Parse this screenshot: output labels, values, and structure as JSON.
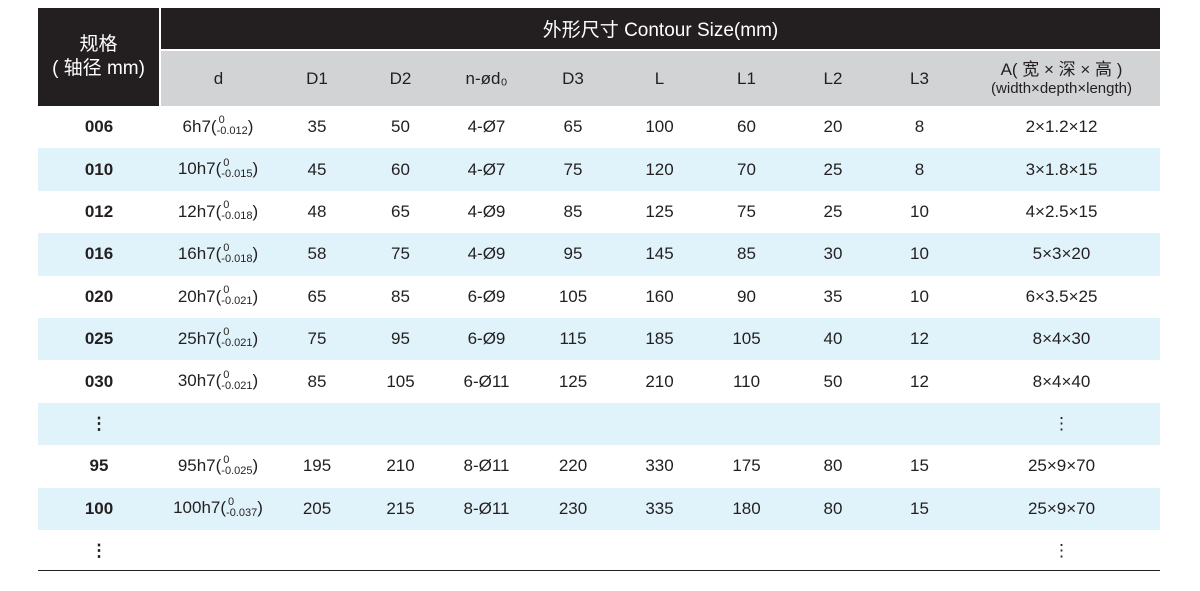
{
  "header": {
    "spec_line1": "规格",
    "spec_line2": "( 轴径 mm)",
    "title": "外形尺寸 Contour Size(mm)",
    "columns": [
      "d",
      "D1",
      "D2",
      "n-ød₀",
      "D3",
      "L",
      "L1",
      "L2",
      "L3"
    ],
    "a_line1": "A( 宽 × 深 × 高 )",
    "a_line2": "(width×depth×length)"
  },
  "rows": [
    {
      "spec": "006",
      "d": "6h7(",
      "tol_up": "0",
      "tol_low": "-0.012",
      "D1": "35",
      "D2": "50",
      "n": "4-Ø7",
      "D3": "65",
      "L": "100",
      "L1": "60",
      "L2": "20",
      "L3": "8",
      "A": "2×1.2×12"
    },
    {
      "spec": "010",
      "d": "10h7(",
      "tol_up": "0",
      "tol_low": "-0.015",
      "D1": "45",
      "D2": "60",
      "n": "4-Ø7",
      "D3": "75",
      "L": "120",
      "L1": "70",
      "L2": "25",
      "L3": "8",
      "A": "3×1.8×15"
    },
    {
      "spec": "012",
      "d": "12h7(",
      "tol_up": "0",
      "tol_low": "-0.018",
      "D1": "48",
      "D2": "65",
      "n": "4-Ø9",
      "D3": "85",
      "L": "125",
      "L1": "75",
      "L2": "25",
      "L3": "10",
      "A": "4×2.5×15"
    },
    {
      "spec": "016",
      "d": "16h7(",
      "tol_up": "0",
      "tol_low": "-0.018",
      "D1": "58",
      "D2": "75",
      "n": "4-Ø9",
      "D3": "95",
      "L": "145",
      "L1": "85",
      "L2": "30",
      "L3": "10",
      "A": "5×3×20"
    },
    {
      "spec": "020",
      "d": "20h7(",
      "tol_up": "0",
      "tol_low": "-0.021",
      "D1": "65",
      "D2": "85",
      "n": "6-Ø9",
      "D3": "105",
      "L": "160",
      "L1": "90",
      "L2": "35",
      "L3": "10",
      "A": "6×3.5×25"
    },
    {
      "spec": "025",
      "d": "25h7(",
      "tol_up": "0",
      "tol_low": "-0.021",
      "D1": "75",
      "D2": "95",
      "n": "6-Ø9",
      "D3": "115",
      "L": "185",
      "L1": "105",
      "L2": "40",
      "L3": "12",
      "A": "8×4×30"
    },
    {
      "spec": "030",
      "d": "30h7(",
      "tol_up": "0",
      "tol_low": "-0.021",
      "D1": "85",
      "D2": "105",
      "n": "6-Ø11",
      "D3": "125",
      "L": "210",
      "L1": "110",
      "L2": "50",
      "L3": "12",
      "A": "8×4×40"
    },
    {
      "spec": "⋮",
      "A": "⋮"
    },
    {
      "spec": "95",
      "d": "95h7(",
      "tol_up": "0",
      "tol_low": "-0.025",
      "D1": "195",
      "D2": "210",
      "n": "8-Ø11",
      "D3": "220",
      "L": "330",
      "L1": "175",
      "L2": "80",
      "L3": "15",
      "A": "25×9×70"
    },
    {
      "spec": "100",
      "d": "100h7(",
      "tol_up": "0",
      "tol_low": "-0.037",
      "D1": "205",
      "D2": "215",
      "n": "8-Ø11",
      "D3": "230",
      "L": "335",
      "L1": "180",
      "L2": "80",
      "L3": "15",
      "A": "25×9×70"
    },
    {
      "spec": "⋮",
      "A": "⋮"
    }
  ],
  "colors": {
    "header_bg": "#231f20",
    "subheader_bg": "#d1d3d4",
    "stripe": "#e1f3fa"
  }
}
